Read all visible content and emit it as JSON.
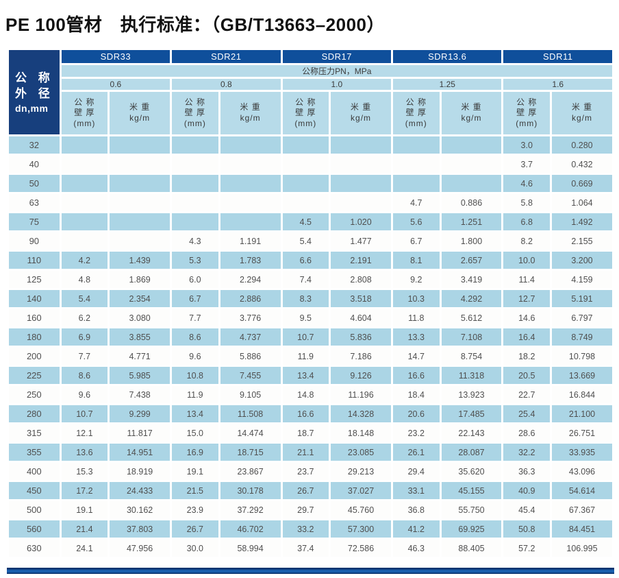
{
  "title": "PE 100管材　执行标准：（GB/T13663–2000）",
  "table": {
    "corner_header": {
      "line1": "公 称",
      "line2": "外 径",
      "line3": "dn,mm"
    },
    "sdr_headers": [
      "SDR33",
      "SDR21",
      "SDR17",
      "SDR13.6",
      "SDR11"
    ],
    "pressure_header": "公称压力PN，MPa",
    "pressure_values": [
      "0.6",
      "0.8",
      "1.0",
      "1.25",
      "1.6"
    ],
    "column_headers": {
      "wall_line1": "公 称",
      "wall_line2": "壁 厚",
      "wall_line3": "(mm)",
      "weight_line1": "米 重",
      "weight_line2": "kg/m"
    },
    "rows": [
      {
        "dn": "32",
        "values": [
          "",
          "",
          "",
          "",
          "",
          "",
          "",
          "",
          "3.0",
          "0.280"
        ]
      },
      {
        "dn": "40",
        "values": [
          "",
          "",
          "",
          "",
          "",
          "",
          "",
          "",
          "3.7",
          "0.432"
        ]
      },
      {
        "dn": "50",
        "values": [
          "",
          "",
          "",
          "",
          "",
          "",
          "",
          "",
          "4.6",
          "0.669"
        ]
      },
      {
        "dn": "63",
        "values": [
          "",
          "",
          "",
          "",
          "",
          "",
          "4.7",
          "0.886",
          "5.8",
          "1.064"
        ]
      },
      {
        "dn": "75",
        "values": [
          "",
          "",
          "",
          "",
          "4.5",
          "1.020",
          "5.6",
          "1.251",
          "6.8",
          "1.492"
        ]
      },
      {
        "dn": "90",
        "values": [
          "",
          "",
          "4.3",
          "1.191",
          "5.4",
          "1.477",
          "6.7",
          "1.800",
          "8.2",
          "2.155"
        ]
      },
      {
        "dn": "110",
        "values": [
          "4.2",
          "1.439",
          "5.3",
          "1.783",
          "6.6",
          "2.191",
          "8.1",
          "2.657",
          "10.0",
          "3.200"
        ]
      },
      {
        "dn": "125",
        "values": [
          "4.8",
          "1.869",
          "6.0",
          "2.294",
          "7.4",
          "2.808",
          "9.2",
          "3.419",
          "11.4",
          "4.159"
        ]
      },
      {
        "dn": "140",
        "values": [
          "5.4",
          "2.354",
          "6.7",
          "2.886",
          "8.3",
          "3.518",
          "10.3",
          "4.292",
          "12.7",
          "5.191"
        ]
      },
      {
        "dn": "160",
        "values": [
          "6.2",
          "3.080",
          "7.7",
          "3.776",
          "9.5",
          "4.604",
          "11.8",
          "5.612",
          "14.6",
          "6.797"
        ]
      },
      {
        "dn": "180",
        "values": [
          "6.9",
          "3.855",
          "8.6",
          "4.737",
          "10.7",
          "5.836",
          "13.3",
          "7.108",
          "16.4",
          "8.749"
        ]
      },
      {
        "dn": "200",
        "values": [
          "7.7",
          "4.771",
          "9.6",
          "5.886",
          "11.9",
          "7.186",
          "14.7",
          "8.754",
          "18.2",
          "10.798"
        ]
      },
      {
        "dn": "225",
        "values": [
          "8.6",
          "5.985",
          "10.8",
          "7.455",
          "13.4",
          "9.126",
          "16.6",
          "11.318",
          "20.5",
          "13.669"
        ]
      },
      {
        "dn": "250",
        "values": [
          "9.6",
          "7.438",
          "11.9",
          "9.105",
          "14.8",
          "11.196",
          "18.4",
          "13.923",
          "22.7",
          "16.844"
        ]
      },
      {
        "dn": "280",
        "values": [
          "10.7",
          "9.299",
          "13.4",
          "11.508",
          "16.6",
          "14.328",
          "20.6",
          "17.485",
          "25.4",
          "21.100"
        ]
      },
      {
        "dn": "315",
        "values": [
          "12.1",
          "11.817",
          "15.0",
          "14.474",
          "18.7",
          "18.148",
          "23.2",
          "22.143",
          "28.6",
          "26.751"
        ]
      },
      {
        "dn": "355",
        "values": [
          "13.6",
          "14.951",
          "16.9",
          "18.715",
          "21.1",
          "23.085",
          "26.1",
          "28.087",
          "32.2",
          "33.935"
        ]
      },
      {
        "dn": "400",
        "values": [
          "15.3",
          "18.919",
          "19.1",
          "23.867",
          "23.7",
          "29.213",
          "29.4",
          "35.620",
          "36.3",
          "43.096"
        ]
      },
      {
        "dn": "450",
        "values": [
          "17.2",
          "24.433",
          "21.5",
          "30.178",
          "26.7",
          "37.027",
          "33.1",
          "45.155",
          "40.9",
          "54.614"
        ]
      },
      {
        "dn": "500",
        "values": [
          "19.1",
          "30.162",
          "23.9",
          "37.292",
          "29.7",
          "45.760",
          "36.8",
          "55.750",
          "45.4",
          "67.367"
        ]
      },
      {
        "dn": "560",
        "values": [
          "21.4",
          "37.803",
          "26.7",
          "46.702",
          "33.2",
          "57.300",
          "41.2",
          "69.925",
          "50.8",
          "84.451"
        ]
      },
      {
        "dn": "630",
        "values": [
          "24.1",
          "47.956",
          "30.0",
          "58.994",
          "37.4",
          "72.586",
          "46.3",
          "88.405",
          "57.2",
          "106.995"
        ]
      }
    ]
  },
  "colors": {
    "corner_navy": "#173f7d",
    "sdr_blue": "#0f4f9b",
    "light_blue_header": "#b7dbe9",
    "stripe_blue": "#abd5e5",
    "row_white": "#fdfdfc",
    "bottom_bar_blue": "#1a5fae",
    "bottom_bar_dark": "#0c3570",
    "text_dark": "#4f4f4f"
  }
}
